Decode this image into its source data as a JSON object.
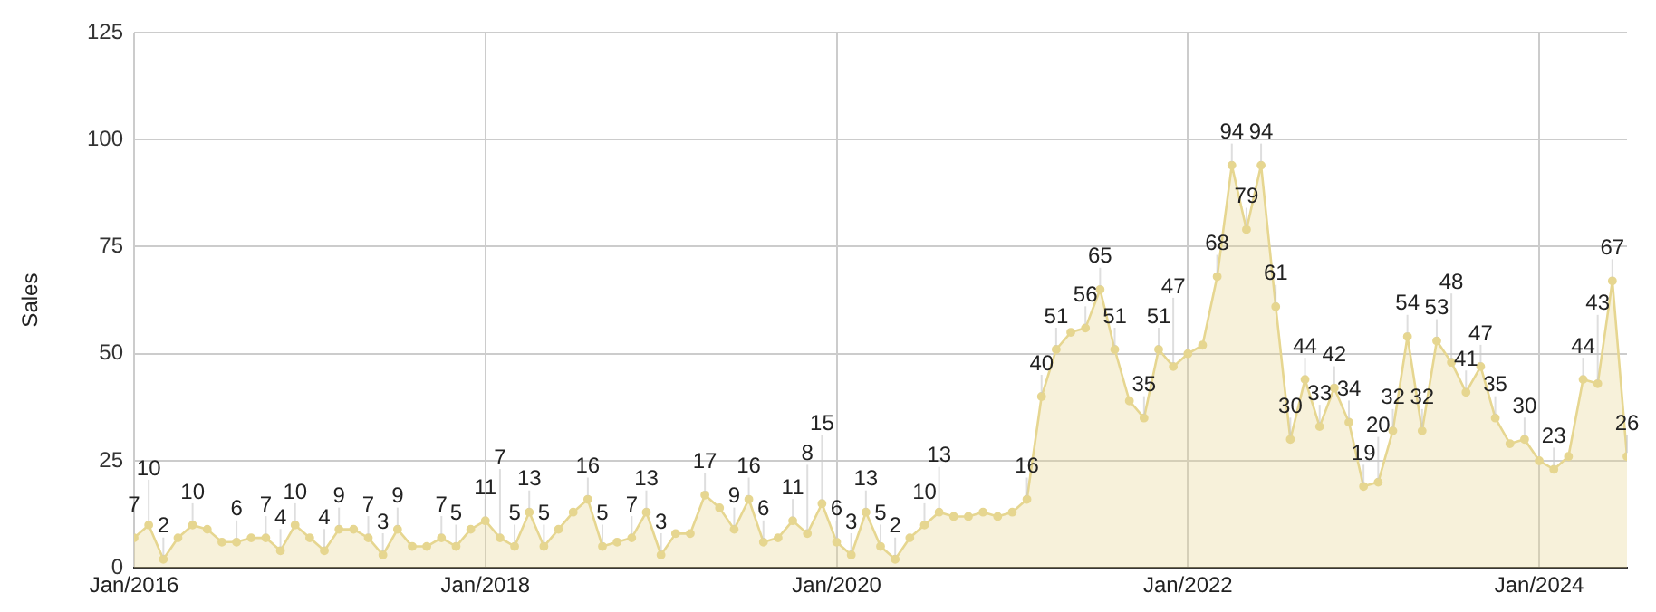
{
  "chart_data": {
    "type": "area",
    "ylabel": "Sales",
    "x": [
      "2016-01",
      "2016-02",
      "2016-03",
      "2016-04",
      "2016-05",
      "2016-06",
      "2016-07",
      "2016-08",
      "2016-09",
      "2016-10",
      "2016-11",
      "2016-12",
      "2017-01",
      "2017-02",
      "2017-03",
      "2017-04",
      "2017-05",
      "2017-06",
      "2017-07",
      "2017-08",
      "2017-09",
      "2017-10",
      "2017-11",
      "2017-12",
      "2018-01",
      "2018-02",
      "2018-03",
      "2018-04",
      "2018-05",
      "2018-06",
      "2018-07",
      "2018-08",
      "2018-09",
      "2018-10",
      "2018-11",
      "2018-12",
      "2019-01",
      "2019-02",
      "2019-03",
      "2019-04",
      "2019-05",
      "2019-06",
      "2019-07",
      "2019-08",
      "2019-09",
      "2019-10",
      "2019-11",
      "2019-12",
      "2020-01",
      "2020-02",
      "2020-03",
      "2020-04",
      "2020-05",
      "2020-06",
      "2020-07",
      "2020-08",
      "2020-09",
      "2020-10",
      "2020-11",
      "2020-12",
      "2021-01",
      "2021-02",
      "2021-03",
      "2021-04",
      "2021-05",
      "2021-06",
      "2021-07",
      "2021-08",
      "2021-09",
      "2021-10",
      "2021-11",
      "2021-12",
      "2022-01",
      "2022-02",
      "2022-03",
      "2022-04",
      "2022-05",
      "2022-06",
      "2022-07",
      "2022-08",
      "2022-09",
      "2022-10",
      "2022-11",
      "2022-12",
      "2023-01",
      "2023-02",
      "2023-03",
      "2023-04",
      "2023-05",
      "2023-06",
      "2023-07",
      "2023-08",
      "2023-09",
      "2023-10",
      "2023-11",
      "2023-12",
      "2024-01",
      "2024-02",
      "2024-03",
      "2024-04",
      "2024-05",
      "2024-06",
      "2024-07"
    ],
    "series": [
      {
        "color": "#e6d690",
        "values": [
          7,
          10,
          2,
          7,
          10,
          9,
          6,
          6,
          7,
          7,
          4,
          10,
          7,
          4,
          9,
          9,
          7,
          3,
          9,
          5,
          5,
          7,
          5,
          9,
          11,
          7,
          5,
          13,
          5,
          9,
          13,
          16,
          5,
          6,
          7,
          13,
          3,
          8,
          8,
          17,
          14,
          9,
          16,
          6,
          7,
          11,
          8,
          15,
          6,
          3,
          13,
          5,
          2,
          7,
          10,
          13,
          12,
          12,
          13,
          12,
          13,
          16,
          40,
          51,
          55,
          56,
          65,
          51,
          39,
          35,
          51,
          47,
          50,
          52,
          68,
          94,
          79,
          94,
          61,
          30,
          44,
          33,
          42,
          34,
          19,
          20,
          32,
          54,
          32,
          53,
          48,
          41,
          47,
          35,
          29,
          30,
          25,
          23,
          26,
          44,
          43,
          67,
          26
        ],
        "value_labels": [
          "7",
          "10",
          "2",
          null,
          "10",
          null,
          null,
          "6",
          null,
          "7",
          "4",
          "10",
          null,
          "4",
          "9",
          null,
          "7",
          "3",
          "9",
          null,
          null,
          "7",
          "5",
          null,
          "11",
          "7",
          "5",
          "13",
          "5",
          null,
          null,
          "16",
          "5",
          null,
          "7",
          "13",
          "3",
          null,
          null,
          "17",
          null,
          "9",
          "16",
          "6",
          null,
          "11",
          "8",
          "15",
          "6",
          "3",
          "13",
          "5",
          "2",
          null,
          "10",
          "13",
          null,
          null,
          null,
          null,
          null,
          "16",
          "40",
          "51",
          null,
          "56",
          "65",
          "51",
          null,
          "35",
          "51",
          "47",
          null,
          null,
          "68",
          "94",
          "79",
          "94",
          "61",
          "30",
          "44",
          "33",
          "42",
          "34",
          "19",
          "20",
          "32",
          "54",
          "32",
          "53",
          "48",
          "41",
          "47",
          "35",
          null,
          "30",
          null,
          "23",
          null,
          "44",
          "43",
          "67",
          "26"
        ]
      }
    ],
    "xlim": [
      "2016-01",
      "2024-07"
    ],
    "xticks": [
      {
        "value": "2016-01",
        "label": "Jan/2016"
      },
      {
        "value": "2018-01",
        "label": "Jan/2018"
      },
      {
        "value": "2020-01",
        "label": "Jan/2020"
      },
      {
        "value": "2022-01",
        "label": "Jan/2022"
      },
      {
        "value": "2024-01",
        "label": "Jan/2024"
      }
    ],
    "ylim": [
      0,
      125
    ],
    "yticks": [
      0,
      25,
      50,
      75,
      100,
      125
    ],
    "grid": true,
    "legend": false,
    "marker": "circle",
    "line_style": "solid"
  }
}
